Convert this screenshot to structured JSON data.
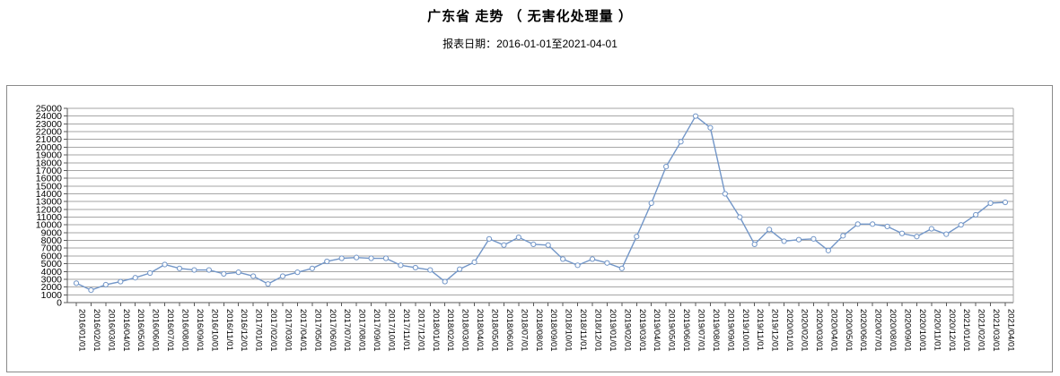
{
  "header": {
    "title": "广东省 走势 （ 无害化处理量 ）",
    "subtitle": "报表日期：2016-01-01至2021-04-01"
  },
  "colors": {
    "line": "#7296c8",
    "marker_fill": "#ffffff",
    "gridline": "#a6a6a6",
    "axis": "#595959",
    "frame_border": "#8a8a8a",
    "text": "#000000"
  },
  "chart_data": {
    "type": "line",
    "title": "广东省 走势 （ 无害化处理量 ）",
    "subtitle": "报表日期：2016-01-01至2021-04-01",
    "xlabel": "",
    "ylabel": "",
    "legend": "none",
    "grid": "horizontal",
    "marker": "hollow-circle",
    "ylim": [
      0,
      25000
    ],
    "ytick_step": 1000,
    "x": [
      "2016/01/01",
      "2016/02/01",
      "2016/03/01",
      "2016/04/01",
      "2016/05/01",
      "2016/06/01",
      "2016/07/01",
      "2016/08/01",
      "2016/09/01",
      "2016/10/01",
      "2016/11/01",
      "2016/12/01",
      "2017/01/01",
      "2017/02/01",
      "2017/03/01",
      "2017/04/01",
      "2017/05/01",
      "2017/06/01",
      "2017/07/01",
      "2017/08/01",
      "2017/09/01",
      "2017/10/01",
      "2017/11/01",
      "2017/12/01",
      "2018/01/01",
      "2018/02/01",
      "2018/03/01",
      "2018/04/01",
      "2018/05/01",
      "2018/06/01",
      "2018/07/01",
      "2018/08/01",
      "2018/09/01",
      "2018/10/01",
      "2018/11/01",
      "2018/12/01",
      "2019/01/01",
      "2019/02/01",
      "2019/03/01",
      "2019/04/01",
      "2019/05/01",
      "2019/06/01",
      "2019/07/01",
      "2019/08/01",
      "2019/09/01",
      "2019/10/01",
      "2019/11/01",
      "2019/12/01",
      "2020/01/01",
      "2020/02/01",
      "2020/03/01",
      "2020/04/01",
      "2020/05/01",
      "2020/06/01",
      "2020/07/01",
      "2020/08/01",
      "2020/09/01",
      "2020/10/01",
      "2020/11/01",
      "2020/12/01",
      "2021/01/01",
      "2021/02/01",
      "2021/03/01",
      "2021/04/01"
    ],
    "values": [
      2500,
      1600,
      2300,
      2700,
      3200,
      3800,
      4900,
      4400,
      4200,
      4200,
      3700,
      3900,
      3400,
      2400,
      3400,
      3900,
      4400,
      5300,
      5700,
      5800,
      5700,
      5700,
      4800,
      4500,
      4200,
      2700,
      4300,
      5200,
      8200,
      7400,
      8400,
      7500,
      7400,
      5600,
      4800,
      5600,
      5100,
      4400,
      8500,
      12800,
      17500,
      20700,
      24000,
      22500,
      14000,
      11000,
      7500,
      9400,
      7900,
      8100,
      8200,
      6700,
      8600,
      10100,
      10100,
      9800,
      8900,
      8500,
      9500,
      8800,
      10000,
      11300,
      12800,
      12900
    ]
  }
}
